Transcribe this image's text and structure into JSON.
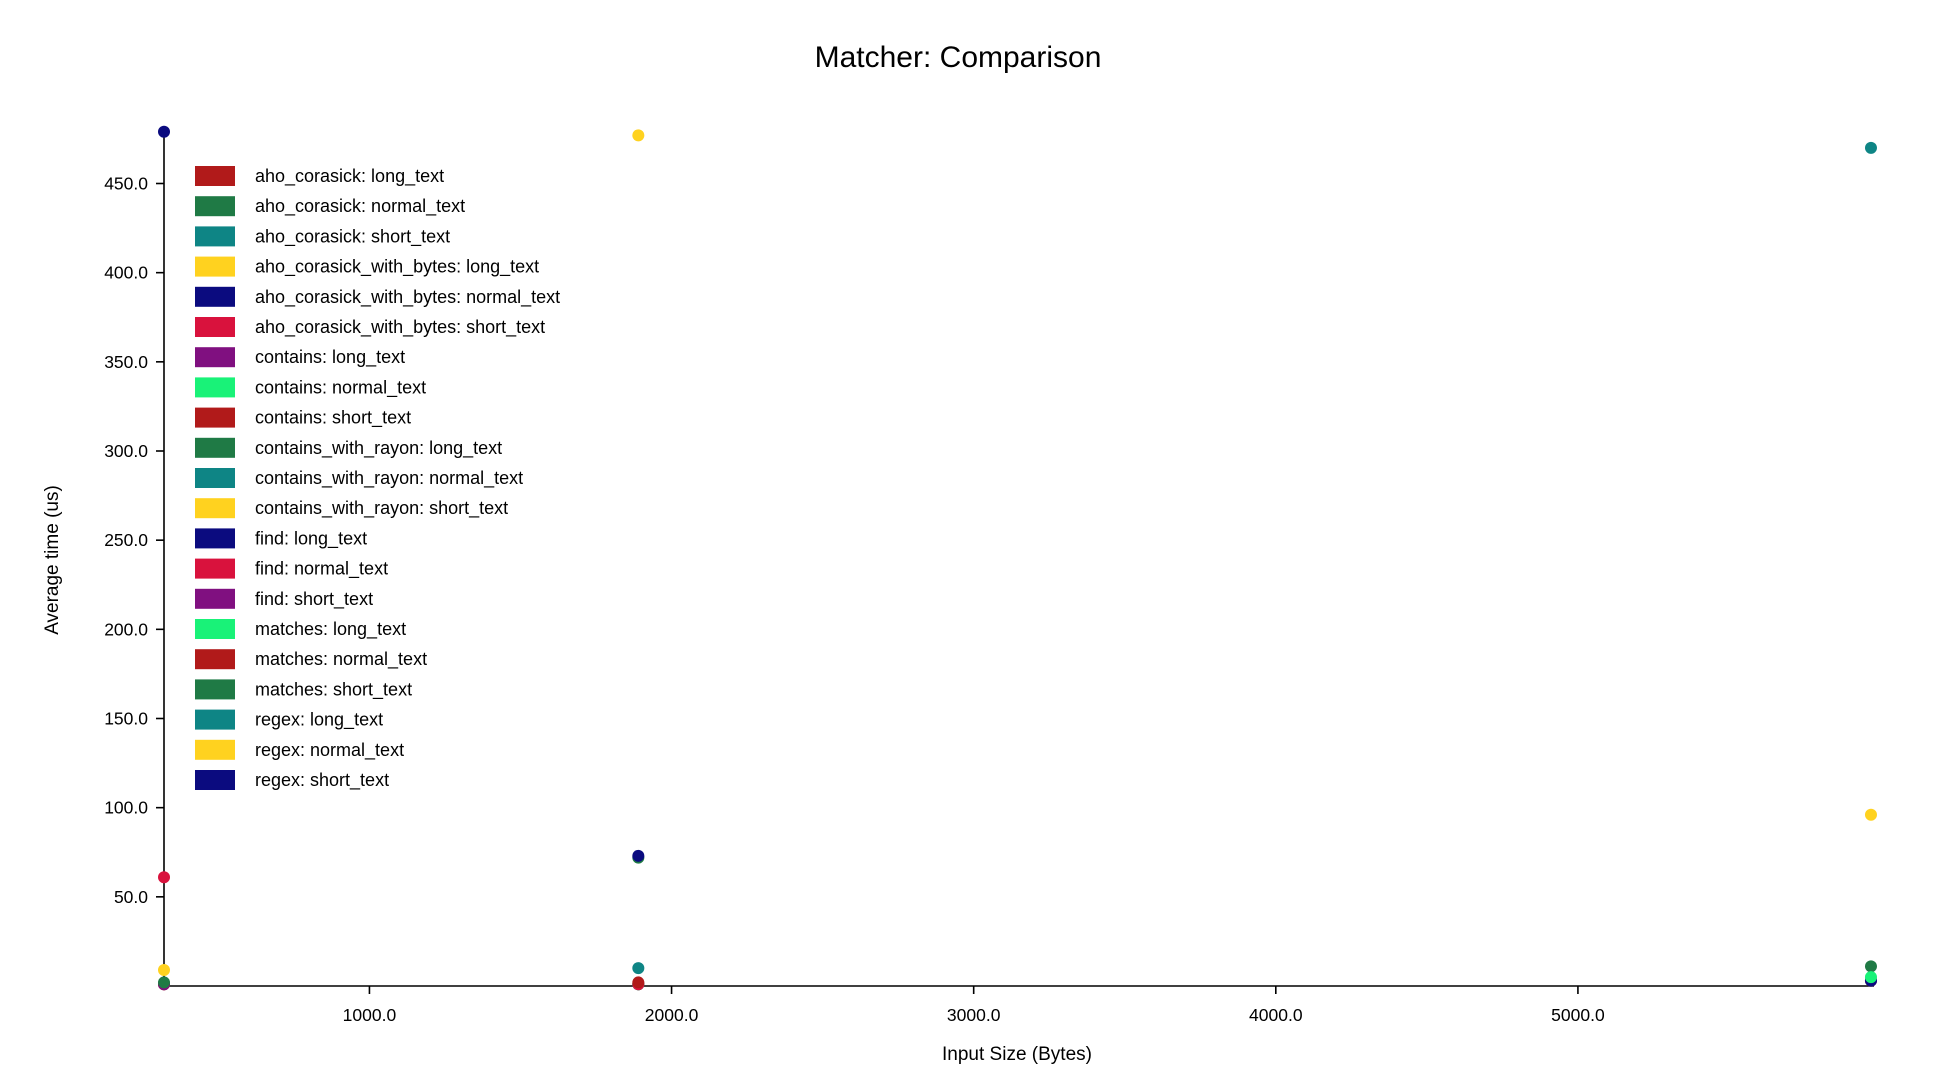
{
  "chart_data": {
    "type": "scatter",
    "title": "Matcher: Comparison",
    "xlabel": "Input Size (Bytes)",
    "ylabel": "Average time (us)",
    "xlim": [
      320,
      5980
    ],
    "ylim": [
      0,
      480
    ],
    "xticks": [
      1000,
      2000,
      3000,
      4000,
      5000
    ],
    "xtick_labels": [
      "1000.0",
      "2000.0",
      "3000.0",
      "4000.0",
      "5000.0"
    ],
    "yticks": [
      50,
      100,
      150,
      200,
      250,
      300,
      350,
      400,
      450
    ],
    "ytick_labels": [
      "50.0",
      "100.0",
      "150.0",
      "200.0",
      "250.0",
      "300.0",
      "350.0",
      "400.0",
      "450.0"
    ],
    "legend_position": "top-left",
    "grid": false,
    "series": [
      {
        "name": "aho_corasick: long_text",
        "color": "#b11a1a",
        "points": [
          [
            5970,
            3
          ]
        ]
      },
      {
        "name": "aho_corasick: normal_text",
        "color": "#1f7a45",
        "points": [
          [
            1890,
            1
          ]
        ]
      },
      {
        "name": "aho_corasick: short_text",
        "color": "#0e8585",
        "points": [
          [
            320,
            1
          ]
        ]
      },
      {
        "name": "aho_corasick_with_bytes: long_text",
        "color": "#ffd21f",
        "points": [
          [
            5970,
            3
          ]
        ]
      },
      {
        "name": "aho_corasick_with_bytes: normal_text",
        "color": "#0b0b7f",
        "points": [
          [
            1890,
            1
          ]
        ]
      },
      {
        "name": "aho_corasick_with_bytes: short_text",
        "color": "#d9123d",
        "points": [
          [
            320,
            1
          ]
        ]
      },
      {
        "name": "contains: long_text",
        "color": "#801080",
        "points": [
          [
            5970,
            3
          ]
        ]
      },
      {
        "name": "contains: normal_text",
        "color": "#19f278",
        "points": [
          [
            1890,
            1
          ]
        ]
      },
      {
        "name": "contains: short_text",
        "color": "#b11a1a",
        "points": [
          [
            320,
            1
          ]
        ]
      },
      {
        "name": "contains_with_rayon: long_text",
        "color": "#1f7a45",
        "points": [
          [
            5970,
            11
          ]
        ]
      },
      {
        "name": "contains_with_rayon: normal_text",
        "color": "#0e8585",
        "points": [
          [
            1890,
            10
          ]
        ]
      },
      {
        "name": "contains_with_rayon: short_text",
        "color": "#ffd21f",
        "points": [
          [
            320,
            9
          ]
        ]
      },
      {
        "name": "find: long_text",
        "color": "#0b0b7f",
        "points": [
          [
            5970,
            3
          ]
        ]
      },
      {
        "name": "find: normal_text",
        "color": "#d9123d",
        "points": [
          [
            1890,
            1
          ]
        ]
      },
      {
        "name": "find: short_text",
        "color": "#801080",
        "points": [
          [
            320,
            1
          ]
        ]
      },
      {
        "name": "matches: long_text",
        "color": "#19f278",
        "points": [
          [
            5970,
            5
          ]
        ]
      },
      {
        "name": "matches: normal_text",
        "color": "#b11a1a",
        "points": [
          [
            1890,
            2
          ]
        ]
      },
      {
        "name": "matches: short_text",
        "color": "#1f7a45",
        "points": [
          [
            320,
            2
          ]
        ]
      },
      {
        "name": "regex: long_text",
        "color": "#0e8585",
        "points": [
          [
            5970,
            470
          ]
        ]
      },
      {
        "name": "regex: normal_text",
        "color": "#ffd21f",
        "points": [
          [
            1890,
            477
          ]
        ]
      },
      {
        "name": "regex: short_text",
        "color": "#0b0b7f",
        "points": [
          [
            320,
            479
          ]
        ]
      },
      {
        "name": "",
        "color": "#1f7a45",
        "points": [
          [
            1890,
            72
          ]
        ]
      },
      {
        "name": "",
        "color": "#0b0b7f",
        "points": [
          [
            1890,
            73
          ]
        ]
      },
      {
        "name": "",
        "color": "#ffd21f",
        "points": [
          [
            5970,
            96
          ]
        ]
      },
      {
        "name": "",
        "color": "#d9123d",
        "points": [
          [
            320,
            61
          ]
        ]
      }
    ]
  }
}
